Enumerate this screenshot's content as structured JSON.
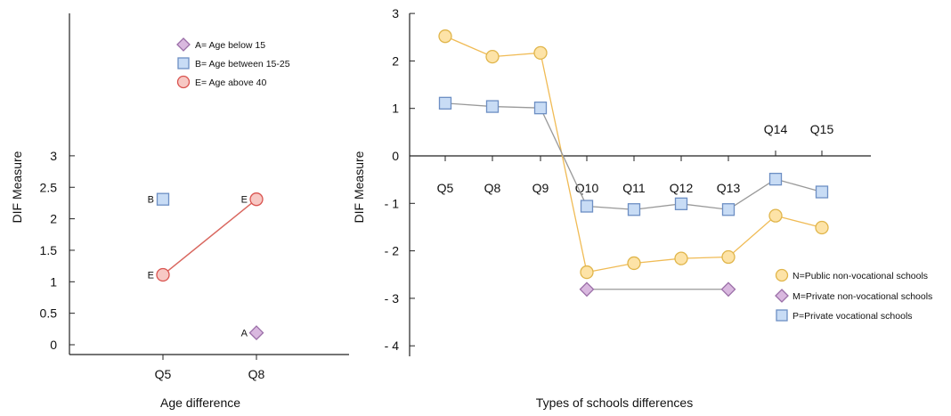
{
  "chart_data": [
    {
      "type": "line",
      "xlabel": "Age difference",
      "ylabel": "DIF Measure",
      "ylim": [
        0,
        3
      ],
      "yticks": [
        "0",
        "0.5",
        "1",
        "1.5",
        "2",
        "2.5",
        "3"
      ],
      "categories": [
        "Q5",
        "Q8"
      ],
      "legend_position": "top-right",
      "series": [
        {
          "name": "A= Age below 15",
          "marker": "diamond",
          "color": "#d9b8df",
          "edge": "#9b6fa8",
          "label": "A",
          "connected": false,
          "values": [
            null,
            0.19
          ]
        },
        {
          "name": "B= Age between 15-25",
          "marker": "square",
          "color": "#c8dcf5",
          "edge": "#6d8fc4",
          "label": "B",
          "connected": false,
          "values": [
            2.31,
            null
          ]
        },
        {
          "name": "E= Age above 40",
          "marker": "circle",
          "color": "#f7c8c4",
          "edge": "#d9534f",
          "label": "E",
          "connected": true,
          "line": "#d9675f",
          "values": [
            1.11,
            2.31
          ]
        }
      ]
    },
    {
      "type": "line",
      "xlabel": "Types of schools differences",
      "ylabel": "DIF Measure",
      "ylim": [
        -4,
        3
      ],
      "yticks": [
        "3",
        "2",
        "1",
        "0",
        "- 1",
        "- 2",
        "- 3",
        "- 4"
      ],
      "categories": [
        "Q5",
        "Q8",
        "Q9",
        "Q10",
        "Q11",
        "Q12",
        "Q13",
        "Q14",
        "Q15"
      ],
      "legend_position": "bottom-right",
      "series": [
        {
          "name": "N=Public non-vocational schools",
          "marker": "circle",
          "color": "#fde3a7",
          "edge": "#e0b54a",
          "line": "#f0bb55",
          "values": [
            2.52,
            2.09,
            2.17,
            -2.45,
            -2.26,
            -2.16,
            -2.13,
            -1.26,
            -1.51
          ]
        },
        {
          "name": "M=Private non-vocational schools",
          "marker": "diamond",
          "color": "#d9b8df",
          "edge": "#9b6fa8",
          "line": "#999999",
          "values": [
            null,
            null,
            null,
            -2.81,
            null,
            null,
            -2.81,
            null,
            null
          ]
        },
        {
          "name": "P=Private vocational schools",
          "marker": "square",
          "color": "#c8dcf5",
          "edge": "#6d8fc4",
          "line": "#999999",
          "values": [
            1.11,
            1.04,
            1.01,
            -1.06,
            -1.13,
            -1.01,
            -1.13,
            -0.49,
            -0.76
          ]
        }
      ]
    }
  ]
}
